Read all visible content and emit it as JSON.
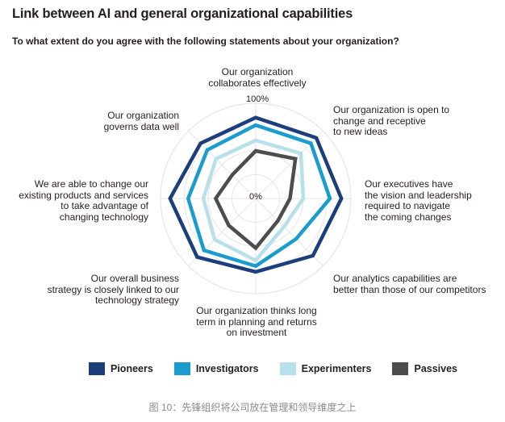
{
  "title": "Link between AI and general organizational capabilities",
  "subtitle": "To what extent do you agree with the following statements about your organization?",
  "caption": "图 10：先锋组织将公司放在管理和领导维度之上",
  "colors": {
    "Pioneers": "#1c3f7c",
    "Investigators": "#1a9dce",
    "Experimenters": "#b7e0ec",
    "Passives": "#4d4d4f",
    "grid": "#e6e6e6"
  },
  "chart_data": {
    "type": "radar",
    "title": "Link between AI and general organizational capabilities",
    "subtitle": "To what extent do you agree with the following statements about your organization?",
    "range": [
      0,
      100
    ],
    "tick_labels": {
      "min": "0%",
      "max": "100%"
    },
    "categories": [
      "Our organization collaborates effectively",
      "Our organization is open to change and receptive to new ideas",
      "Our executives have the vision and leadership required to navigate the coming changes",
      "Our analytics capabilities are better than those of our competitors",
      "Our organization thinks long term in planning and returns on investment",
      "Our overall business strategy is closely linked to our technology strategy",
      "We are able to change our existing products and services to take advantage of changing technology",
      "Our organization governs data well"
    ],
    "series": [
      {
        "name": "Pioneers",
        "values": [
          85,
          90,
          90,
          85,
          77,
          87,
          90,
          82
        ]
      },
      {
        "name": "Investigators",
        "values": [
          77,
          82,
          78,
          60,
          71,
          77,
          71,
          72
        ]
      },
      {
        "name": "Experimenters",
        "values": [
          61,
          67,
          50,
          42,
          65,
          61,
          55,
          59
        ]
      },
      {
        "name": "Passives",
        "values": [
          50,
          59,
          36,
          33,
          52,
          40,
          42,
          35
        ]
      }
    ],
    "legend_position": "bottom"
  },
  "axis_labels": [
    "Our organization\ncollaborates effectively",
    "Our organization is open to\nchange and receptive\nto new ideas",
    "Our executives have\nthe vision and leadership\nrequired to navigate\nthe coming changes",
    "Our analytics capabilities are\nbetter than those of our competitors",
    "Our organization thinks long\nterm in planning and returns\non investment",
    "Our overall business\nstrategy is closely linked to our\ntechnology strategy",
    "We are able to change our\nexisting products and services\nto take advantage of\nchanging technology",
    "Our organization\ngoverns data well"
  ]
}
